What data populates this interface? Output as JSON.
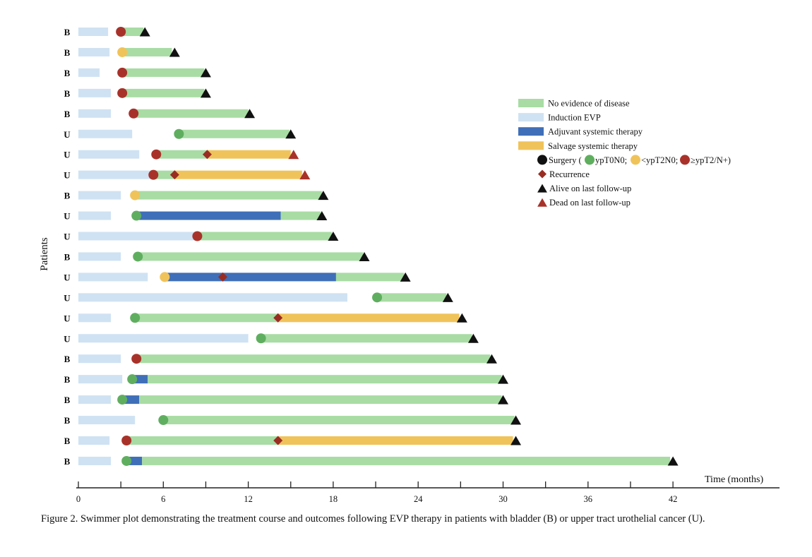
{
  "chart_data": {
    "type": "swimmer",
    "xlabel": "Time (months)",
    "ylabel": "Patients",
    "xlim": [
      0,
      49
    ],
    "xticks": [
      0,
      6,
      12,
      18,
      24,
      30,
      36,
      42
    ],
    "minor_ticks": [
      3,
      9,
      15,
      21,
      27,
      33,
      39
    ],
    "colors": {
      "ned": "#a8dca4",
      "induction": "#cfe2f3",
      "adjuvant": "#3f6fb8",
      "salvage": "#f0c35a",
      "surgery": "#111111",
      "ypT0N0": "#5fae5f",
      "ltypT2N0": "#f0c35a",
      "geypT2": "#a8322a",
      "recurrence": "#9a2d22",
      "alive": "#111111",
      "dead": "#a8322a"
    },
    "legend": [
      {
        "kind": "bar",
        "color_key": "ned",
        "label": "No evidence of disease"
      },
      {
        "kind": "bar",
        "color_key": "induction",
        "label": "Induction EVP"
      },
      {
        "kind": "bar",
        "color_key": "adjuvant",
        "label": "Adjuvant systemic therapy"
      },
      {
        "kind": "bar",
        "color_key": "salvage",
        "label": "Salvage systemic therapy"
      },
      {
        "kind": "surgery",
        "labels": [
          "Surgery (",
          "ypT0N0;",
          "<ypT2N0;",
          "≥ypT2/N+)"
        ]
      },
      {
        "kind": "recurrence",
        "color_key": "recurrence",
        "label": "Recurrence"
      },
      {
        "kind": "alive",
        "color_key": "alive",
        "label": "Alive on last follow-up"
      },
      {
        "kind": "dead",
        "color_key": "dead",
        "label": "Dead on last follow-up"
      }
    ],
    "patients": [
      {
        "type": "B",
        "segments": [
          {
            "k": "induction",
            "s": 0,
            "e": 2.1
          },
          {
            "k": "ned",
            "s": 3.0,
            "e": 4.6
          }
        ],
        "surgery": {
          "t": 3.0,
          "path": "geypT2"
        },
        "recurrence": null,
        "end": {
          "t": 4.7,
          "status": "alive"
        }
      },
      {
        "type": "B",
        "segments": [
          {
            "k": "induction",
            "s": 0,
            "e": 2.2
          },
          {
            "k": "ned",
            "s": 3.1,
            "e": 6.6
          }
        ],
        "surgery": {
          "t": 3.1,
          "path": "ltypT2N0"
        },
        "recurrence": null,
        "end": {
          "t": 6.8,
          "status": "alive"
        }
      },
      {
        "type": "B",
        "segments": [
          {
            "k": "induction",
            "s": 0,
            "e": 1.5
          },
          {
            "k": "ned",
            "s": 3.1,
            "e": 8.9
          }
        ],
        "surgery": {
          "t": 3.1,
          "path": "geypT2"
        },
        "recurrence": null,
        "end": {
          "t": 9.0,
          "status": "alive"
        }
      },
      {
        "type": "B",
        "segments": [
          {
            "k": "induction",
            "s": 0,
            "e": 2.3
          },
          {
            "k": "ned",
            "s": 3.1,
            "e": 8.9
          }
        ],
        "surgery": {
          "t": 3.1,
          "path": "geypT2"
        },
        "recurrence": null,
        "end": {
          "t": 9.0,
          "status": "alive"
        }
      },
      {
        "type": "B",
        "segments": [
          {
            "k": "induction",
            "s": 0,
            "e": 2.3
          },
          {
            "k": "ned",
            "s": 3.9,
            "e": 12.0
          }
        ],
        "surgery": {
          "t": 3.9,
          "path": "geypT2"
        },
        "recurrence": null,
        "end": {
          "t": 12.1,
          "status": "alive"
        }
      },
      {
        "type": "U",
        "segments": [
          {
            "k": "induction",
            "s": 0,
            "e": 3.8
          },
          {
            "k": "ned",
            "s": 7.1,
            "e": 14.9
          }
        ],
        "surgery": {
          "t": 7.1,
          "path": "ypT0N0"
        },
        "recurrence": null,
        "end": {
          "t": 15.0,
          "status": "alive"
        }
      },
      {
        "type": "U",
        "segments": [
          {
            "k": "induction",
            "s": 0,
            "e": 4.3
          },
          {
            "k": "ned",
            "s": 5.5,
            "e": 9.1
          },
          {
            "k": "salvage",
            "s": 9.1,
            "e": 15.0
          }
        ],
        "surgery": {
          "t": 5.5,
          "path": "geypT2"
        },
        "recurrence": {
          "t": 9.1
        },
        "end": {
          "t": 15.2,
          "status": "dead"
        }
      },
      {
        "type": "U",
        "segments": [
          {
            "k": "induction",
            "s": 0,
            "e": 5.3
          },
          {
            "k": "ned",
            "s": 5.3,
            "e": 6.8
          },
          {
            "k": "salvage",
            "s": 6.8,
            "e": 15.8
          }
        ],
        "surgery": {
          "t": 5.3,
          "path": "geypT2"
        },
        "recurrence": {
          "t": 6.8
        },
        "end": {
          "t": 16.0,
          "status": "dead"
        }
      },
      {
        "type": "B",
        "segments": [
          {
            "k": "induction",
            "s": 0,
            "e": 3.0
          },
          {
            "k": "ned",
            "s": 4.0,
            "e": 17.2
          }
        ],
        "surgery": {
          "t": 4.0,
          "path": "ltypT2N0"
        },
        "recurrence": null,
        "end": {
          "t": 17.3,
          "status": "alive"
        }
      },
      {
        "type": "U",
        "segments": [
          {
            "k": "induction",
            "s": 0,
            "e": 2.3
          },
          {
            "k": "adjuvant",
            "s": 4.1,
            "e": 14.3
          },
          {
            "k": "ned",
            "s": 14.3,
            "e": 17.1
          }
        ],
        "surgery": {
          "t": 4.1,
          "path": "ypT0N0"
        },
        "recurrence": null,
        "end": {
          "t": 17.2,
          "status": "alive"
        }
      },
      {
        "type": "U",
        "segments": [
          {
            "k": "induction",
            "s": 0,
            "e": 8.2
          },
          {
            "k": "ned",
            "s": 8.4,
            "e": 17.9
          }
        ],
        "surgery": {
          "t": 8.4,
          "path": "geypT2"
        },
        "recurrence": null,
        "end": {
          "t": 18.0,
          "status": "alive"
        }
      },
      {
        "type": "B",
        "segments": [
          {
            "k": "induction",
            "s": 0,
            "e": 3.0
          },
          {
            "k": "ned",
            "s": 4.2,
            "e": 20.1
          }
        ],
        "surgery": {
          "t": 4.2,
          "path": "ypT0N0"
        },
        "recurrence": null,
        "end": {
          "t": 20.2,
          "status": "alive"
        }
      },
      {
        "type": "U",
        "segments": [
          {
            "k": "induction",
            "s": 0,
            "e": 4.9
          },
          {
            "k": "adjuvant",
            "s": 6.1,
            "e": 18.2
          },
          {
            "k": "ned",
            "s": 18.2,
            "e": 23.0
          }
        ],
        "surgery": {
          "t": 6.1,
          "path": "ltypT2N0"
        },
        "recurrence": {
          "t": 10.2
        },
        "end": {
          "t": 23.1,
          "status": "alive"
        }
      },
      {
        "type": "U",
        "segments": [
          {
            "k": "induction",
            "s": 0,
            "e": 19.0
          },
          {
            "k": "ned",
            "s": 21.1,
            "e": 26.0
          }
        ],
        "surgery": {
          "t": 21.1,
          "path": "ypT0N0"
        },
        "recurrence": null,
        "end": {
          "t": 26.1,
          "status": "alive"
        }
      },
      {
        "type": "U",
        "segments": [
          {
            "k": "induction",
            "s": 0,
            "e": 2.3
          },
          {
            "k": "ned",
            "s": 4.0,
            "e": 14.1
          },
          {
            "k": "salvage",
            "s": 14.1,
            "e": 26.9
          }
        ],
        "surgery": {
          "t": 4.0,
          "path": "ypT0N0"
        },
        "recurrence": {
          "t": 14.1
        },
        "end": {
          "t": 27.1,
          "status": "alive"
        }
      },
      {
        "type": "U",
        "segments": [
          {
            "k": "induction",
            "s": 0,
            "e": 12.0
          },
          {
            "k": "ned",
            "s": 12.9,
            "e": 27.8
          }
        ],
        "surgery": {
          "t": 12.9,
          "path": "ypT0N0"
        },
        "recurrence": null,
        "end": {
          "t": 27.9,
          "status": "alive"
        }
      },
      {
        "type": "B",
        "segments": [
          {
            "k": "induction",
            "s": 0,
            "e": 3.0
          },
          {
            "k": "ned",
            "s": 4.1,
            "e": 29.1
          }
        ],
        "surgery": {
          "t": 4.1,
          "path": "geypT2"
        },
        "recurrence": null,
        "end": {
          "t": 29.2,
          "status": "alive"
        }
      },
      {
        "type": "B",
        "segments": [
          {
            "k": "induction",
            "s": 0,
            "e": 3.1
          },
          {
            "k": "adjuvant",
            "s": 3.8,
            "e": 4.9
          },
          {
            "k": "ned",
            "s": 4.9,
            "e": 29.9
          }
        ],
        "surgery": {
          "t": 3.8,
          "path": "ypT0N0"
        },
        "recurrence": null,
        "end": {
          "t": 30.0,
          "status": "alive"
        }
      },
      {
        "type": "B",
        "segments": [
          {
            "k": "induction",
            "s": 0,
            "e": 2.3
          },
          {
            "k": "adjuvant",
            "s": 3.1,
            "e": 4.3
          },
          {
            "k": "ned",
            "s": 4.3,
            "e": 29.9
          }
        ],
        "surgery": {
          "t": 3.1,
          "path": "ypT0N0"
        },
        "recurrence": null,
        "end": {
          "t": 30.0,
          "status": "alive"
        }
      },
      {
        "type": "B",
        "segments": [
          {
            "k": "induction",
            "s": 0,
            "e": 4.0
          },
          {
            "k": "ned",
            "s": 6.0,
            "e": 30.8
          }
        ],
        "surgery": {
          "t": 6.0,
          "path": "ypT0N0"
        },
        "recurrence": null,
        "end": {
          "t": 30.9,
          "status": "alive"
        }
      },
      {
        "type": "B",
        "segments": [
          {
            "k": "induction",
            "s": 0,
            "e": 2.2
          },
          {
            "k": "ned",
            "s": 3.4,
            "e": 14.1
          },
          {
            "k": "salvage",
            "s": 14.1,
            "e": 30.7
          }
        ],
        "surgery": {
          "t": 3.4,
          "path": "geypT2"
        },
        "recurrence": {
          "t": 14.1
        },
        "end": {
          "t": 30.9,
          "status": "alive"
        }
      },
      {
        "type": "B",
        "segments": [
          {
            "k": "induction",
            "s": 0,
            "e": 2.3
          },
          {
            "k": "adjuvant",
            "s": 3.4,
            "e": 4.5
          },
          {
            "k": "ned",
            "s": 4.5,
            "e": 41.8
          }
        ],
        "surgery": {
          "t": 3.4,
          "path": "ypT0N0"
        },
        "recurrence": null,
        "end": {
          "t": 42.0,
          "status": "alive"
        }
      }
    ]
  },
  "caption": "Figure 2. Swimmer plot demonstrating the treatment course and outcomes following EVP therapy in patients with bladder (B) or upper tract urothelial cancer (U)."
}
